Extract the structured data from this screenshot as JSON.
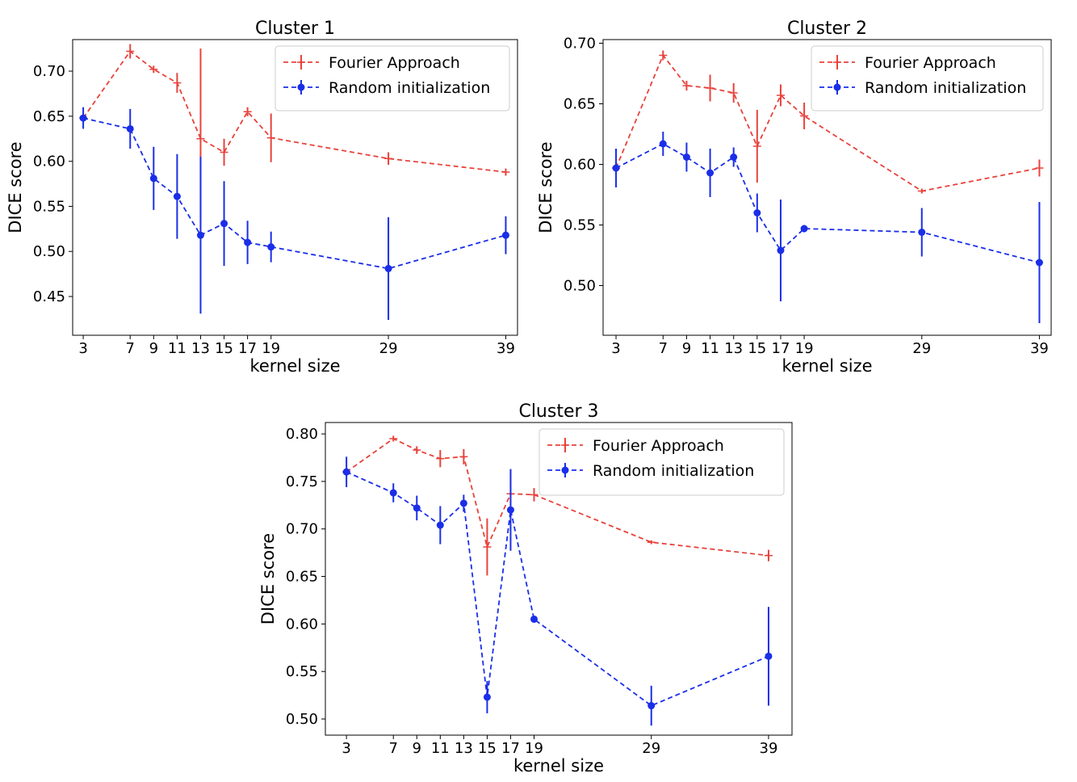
{
  "chart_data": [
    {
      "type": "line",
      "title": "Cluster 1",
      "xlabel": "kernel size",
      "ylabel": "DICE score",
      "x": [
        3,
        7,
        9,
        11,
        13,
        15,
        17,
        19,
        29,
        39
      ],
      "xticks": [
        "3",
        "7",
        "9",
        "11",
        "13",
        "15",
        "17",
        "19",
        "29",
        "39"
      ],
      "xlim": [
        2.1,
        40.0
      ],
      "ylim": [
        0.407,
        0.735
      ],
      "yticks": [
        "0.45",
        "0.50",
        "0.55",
        "0.60",
        "0.65",
        "0.70"
      ],
      "legend_position": "top-right",
      "series": [
        {
          "name": "Fourier Approach",
          "color": "#e8423c",
          "marker": "tick",
          "values": [
            0.648,
            0.722,
            0.702,
            0.687,
            0.625,
            0.61,
            0.655,
            0.626,
            0.603,
            0.588
          ],
          "errors": [
            0.003,
            0.008,
            0.004,
            0.011,
            0.1,
            0.015,
            0.005,
            0.027,
            0.007,
            0.004
          ]
        },
        {
          "name": "Random initialization",
          "color": "#1a2ee8",
          "marker": "dot",
          "values": [
            0.648,
            0.636,
            0.581,
            0.561,
            0.518,
            0.531,
            0.51,
            0.505,
            0.481,
            0.518
          ],
          "errors": [
            0.012,
            0.022,
            0.035,
            0.047,
            0.087,
            0.047,
            0.024,
            0.017,
            0.057,
            0.021
          ]
        }
      ]
    },
    {
      "type": "line",
      "title": "Cluster 2",
      "xlabel": "kernel size",
      "ylabel": "DICE score",
      "x": [
        3,
        7,
        9,
        11,
        13,
        15,
        17,
        19,
        29,
        39
      ],
      "xticks": [
        "3",
        "7",
        "9",
        "11",
        "13",
        "15",
        "17",
        "19",
        "29",
        "39"
      ],
      "xlim": [
        1.9,
        40.0
      ],
      "ylim": [
        0.459,
        0.703
      ],
      "yticks": [
        "0.50",
        "0.55",
        "0.60",
        "0.65",
        "0.70"
      ],
      "legend_position": "top-right",
      "series": [
        {
          "name": "Fourier Approach",
          "color": "#e8423c",
          "marker": "tick",
          "values": [
            0.597,
            0.69,
            0.665,
            0.663,
            0.659,
            0.615,
            0.657,
            0.64,
            0.578,
            0.597
          ],
          "errors": [
            0.003,
            0.004,
            0.004,
            0.011,
            0.008,
            0.03,
            0.009,
            0.011,
            0.002,
            0.007
          ]
        },
        {
          "name": "Random initialization",
          "color": "#1a2ee8",
          "marker": "dot",
          "values": [
            0.597,
            0.617,
            0.606,
            0.593,
            0.606,
            0.56,
            0.529,
            0.547,
            0.544,
            0.519
          ],
          "errors": [
            0.016,
            0.01,
            0.012,
            0.02,
            0.008,
            0.016,
            0.042,
            0.003,
            0.02,
            0.05
          ]
        }
      ]
    },
    {
      "type": "line",
      "title": "Cluster 3",
      "xlabel": "kernel size",
      "ylabel": "DICE score",
      "x": [
        3,
        7,
        9,
        11,
        13,
        15,
        17,
        19,
        29,
        39
      ],
      "xticks": [
        "3",
        "7",
        "9",
        "11",
        "13",
        "15",
        "17",
        "19",
        "29",
        "39"
      ],
      "xlim": [
        1.2,
        41.0
      ],
      "ylim": [
        0.483,
        0.812
      ],
      "yticks": [
        "0.50",
        "0.55",
        "0.60",
        "0.65",
        "0.70",
        "0.75",
        "0.80"
      ],
      "legend_position": "top-right",
      "series": [
        {
          "name": "Fourier Approach",
          "color": "#e8423c",
          "marker": "tick",
          "values": [
            0.76,
            0.795,
            0.783,
            0.774,
            0.776,
            0.681,
            0.737,
            0.736,
            0.686,
            0.672
          ],
          "errors": [
            0.003,
            0.003,
            0.004,
            0.009,
            0.008,
            0.03,
            0.025,
            0.007,
            0.002,
            0.006
          ]
        },
        {
          "name": "Random initialization",
          "color": "#1a2ee8",
          "marker": "dot",
          "values": [
            0.76,
            0.738,
            0.722,
            0.704,
            0.727,
            0.523,
            0.72,
            0.605,
            0.514,
            0.566
          ],
          "errors": [
            0.016,
            0.01,
            0.013,
            0.02,
            0.009,
            0.017,
            0.043,
            0.003,
            0.021,
            0.052
          ]
        }
      ]
    }
  ]
}
